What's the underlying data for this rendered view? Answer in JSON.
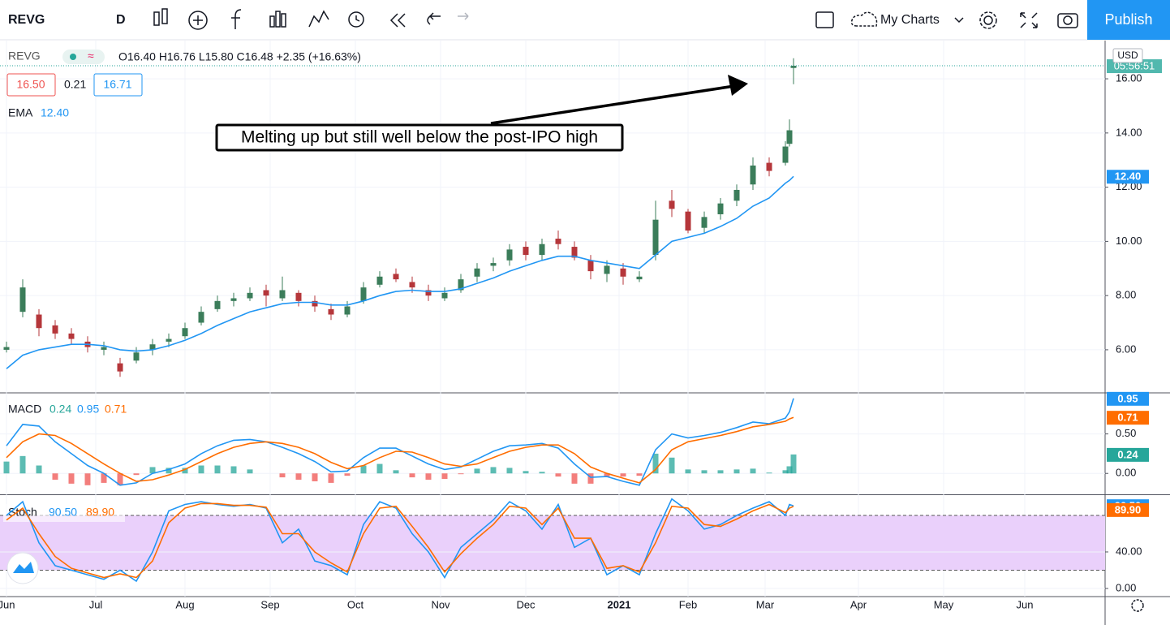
{
  "toolbar": {
    "symbol": "REVG",
    "interval": "D",
    "layout": "My Charts",
    "publish": "Publish"
  },
  "legend": {
    "symbol": "REVG",
    "ohlc": "O16.40 H16.76 L15.80 C16.48 +2.35 (+16.63%)",
    "bid": "16.50",
    "spread": "0.21",
    "ask": "16.71"
  },
  "chart_data": [
    {
      "type": "candlestick",
      "currency": "USD",
      "countdown": "05:56:51",
      "countdown_color": "#26a69a",
      "annotation": "Melting up but still well below the post-IPO high",
      "up_color": "#3b7d5a",
      "down_color": "#b5363a",
      "grid": true,
      "x": [
        0,
        4,
        8,
        12,
        16,
        20,
        24,
        28,
        32,
        36,
        40,
        44,
        48,
        52,
        56,
        60,
        64,
        68,
        72,
        76,
        80,
        84,
        88,
        92,
        96,
        100,
        104,
        108,
        112,
        116,
        120,
        124,
        128,
        132,
        136,
        140,
        144,
        148,
        152,
        156,
        160,
        164,
        168,
        172,
        176,
        180,
        184,
        188,
        192,
        193,
        194
      ],
      "open": [
        6.0,
        7.4,
        7.3,
        6.9,
        6.6,
        6.3,
        6.0,
        5.5,
        5.6,
        6.0,
        6.3,
        6.5,
        7.0,
        7.5,
        7.8,
        7.9,
        8.2,
        7.9,
        8.1,
        7.8,
        7.5,
        7.3,
        7.8,
        8.4,
        8.8,
        8.5,
        8.2,
        7.9,
        8.2,
        8.7,
        9.1,
        9.3,
        9.8,
        9.5,
        10.1,
        9.8,
        9.3,
        8.8,
        9.0,
        8.6,
        9.5,
        11.5,
        11.1,
        10.5,
        11.0,
        11.5,
        12.1,
        12.9,
        12.9,
        13.6,
        16.4
      ],
      "high": [
        6.3,
        8.6,
        7.5,
        7.1,
        6.8,
        6.5,
        6.3,
        5.7,
        6.1,
        6.4,
        6.6,
        7.0,
        7.6,
        8.0,
        8.1,
        8.3,
        8.4,
        8.7,
        8.2,
        8.0,
        7.7,
        7.8,
        8.5,
        8.9,
        9.0,
        8.7,
        8.4,
        8.3,
        8.8,
        9.2,
        9.4,
        9.9,
        10.0,
        10.1,
        10.4,
        10.0,
        9.5,
        9.3,
        9.2,
        8.9,
        11.5,
        11.9,
        11.2,
        11.1,
        11.6,
        12.1,
        13.1,
        13.1,
        13.7,
        14.5,
        16.76
      ],
      "low": [
        5.9,
        7.2,
        6.5,
        6.4,
        6.2,
        5.9,
        5.8,
        5.0,
        5.5,
        5.8,
        6.1,
        6.4,
        6.9,
        7.4,
        7.6,
        7.8,
        7.6,
        7.8,
        7.6,
        7.4,
        7.1,
        7.2,
        7.7,
        8.3,
        8.5,
        8.1,
        7.8,
        7.8,
        8.1,
        8.5,
        8.9,
        9.1,
        9.3,
        9.3,
        9.7,
        9.3,
        8.6,
        8.5,
        8.4,
        8.5,
        9.3,
        10.9,
        10.3,
        10.3,
        10.8,
        11.3,
        11.9,
        12.4,
        12.8,
        13.5,
        15.8
      ],
      "close": [
        6.1,
        8.3,
        6.8,
        6.6,
        6.4,
        6.1,
        6.1,
        5.2,
        5.9,
        6.2,
        6.4,
        6.8,
        7.4,
        7.8,
        7.9,
        8.1,
        8.0,
        8.2,
        7.8,
        7.6,
        7.3,
        7.6,
        8.3,
        8.7,
        8.6,
        8.3,
        8.0,
        8.1,
        8.6,
        9.0,
        9.2,
        9.7,
        9.5,
        9.9,
        9.9,
        9.4,
        8.9,
        9.1,
        8.7,
        8.7,
        10.8,
        11.2,
        10.4,
        10.9,
        11.4,
        11.9,
        12.8,
        12.6,
        13.5,
        14.1,
        16.48
      ],
      "series": [
        {
          "name": "EMA",
          "color": "#2196f3",
          "last_label": "12.40",
          "values": [
            5.3,
            5.8,
            6.0,
            6.1,
            6.2,
            6.2,
            6.15,
            6.0,
            5.95,
            6.0,
            6.15,
            6.35,
            6.6,
            6.9,
            7.15,
            7.4,
            7.55,
            7.7,
            7.75,
            7.75,
            7.65,
            7.65,
            7.8,
            8.0,
            8.15,
            8.2,
            8.15,
            8.15,
            8.25,
            8.45,
            8.65,
            8.9,
            9.1,
            9.3,
            9.45,
            9.45,
            9.3,
            9.2,
            9.1,
            9.0,
            9.5,
            10.0,
            10.15,
            10.3,
            10.55,
            10.85,
            11.3,
            11.6,
            12.15,
            12.25,
            12.4
          ]
        }
      ],
      "xlim": [
        -1.6,
        270.8
      ],
      "xticks": [
        {
          "value": 0,
          "label": "Jun"
        },
        {
          "value": 22,
          "label": "Jul"
        },
        {
          "value": 44,
          "label": "Aug"
        },
        {
          "value": 65,
          "label": "Sep"
        },
        {
          "value": 86,
          "label": "Oct"
        },
        {
          "value": 107,
          "label": "Nov"
        },
        {
          "value": 128,
          "label": "Dec"
        },
        {
          "value": 151,
          "label": "2021"
        },
        {
          "value": 168,
          "label": "Feb"
        },
        {
          "value": 187,
          "label": "Mar"
        },
        {
          "value": 210,
          "label": "Apr"
        },
        {
          "value": 231,
          "label": "May"
        },
        {
          "value": 251,
          "label": "Jun"
        }
      ],
      "ylim": [
        4.44,
        17.41
      ],
      "yticks": [
        {
          "value": 6,
          "label": "6.00"
        },
        {
          "value": 8,
          "label": "8.00"
        },
        {
          "value": 10,
          "label": "10.00"
        },
        {
          "value": 12,
          "label": "12.00"
        },
        {
          "value": 14,
          "label": "14.00"
        },
        {
          "value": 16,
          "label": "16.00"
        }
      ]
    },
    {
      "type": "macd",
      "title": "MACD",
      "grid": true,
      "ylim": [
        -0.265,
        1.01
      ],
      "yticks": [
        {
          "value": 0,
          "label": "0.00"
        },
        {
          "value": 0.5,
          "label": "0.50"
        }
      ],
      "series": [
        {
          "kind": "histogram",
          "color": "#26a69a",
          "negative_color": "#ef5350",
          "last_label": "0.24",
          "values": [
            0.15,
            0.22,
            0.1,
            -0.08,
            -0.13,
            -0.15,
            -0.12,
            -0.15,
            -0.02,
            0.08,
            0.07,
            0.07,
            0.1,
            0.1,
            0.09,
            0.05,
            0.0,
            -0.05,
            -0.08,
            -0.1,
            -0.12,
            -0.03,
            0.1,
            0.12,
            0.04,
            -0.05,
            -0.08,
            -0.07,
            -0.01,
            0.06,
            0.08,
            0.07,
            0.03,
            0.02,
            -0.04,
            -0.13,
            -0.13,
            -0.04,
            -0.04,
            -0.03,
            0.25,
            0.2,
            0.05,
            0.04,
            0.04,
            0.05,
            0.06,
            0.01,
            0.04,
            0.09,
            0.24
          ]
        },
        {
          "kind": "line",
          "color": "#2196f3",
          "last_label": "0.95",
          "values": [
            0.35,
            0.62,
            0.6,
            0.4,
            0.25,
            0.1,
            0.0,
            -0.15,
            -0.12,
            0.0,
            0.05,
            0.12,
            0.25,
            0.35,
            0.42,
            0.43,
            0.4,
            0.33,
            0.25,
            0.15,
            0.02,
            0.03,
            0.2,
            0.32,
            0.32,
            0.22,
            0.12,
            0.05,
            0.08,
            0.18,
            0.28,
            0.35,
            0.36,
            0.38,
            0.32,
            0.12,
            -0.05,
            -0.04,
            -0.1,
            -0.15,
            0.3,
            0.5,
            0.45,
            0.48,
            0.52,
            0.58,
            0.65,
            0.63,
            0.7,
            0.78,
            0.95
          ]
        },
        {
          "kind": "line",
          "color": "#ff6d00",
          "last_label": "0.71",
          "values": [
            0.2,
            0.4,
            0.5,
            0.48,
            0.38,
            0.25,
            0.12,
            0.0,
            -0.1,
            -0.08,
            -0.02,
            0.05,
            0.15,
            0.25,
            0.33,
            0.38,
            0.4,
            0.38,
            0.33,
            0.25,
            0.14,
            0.06,
            0.1,
            0.2,
            0.28,
            0.27,
            0.2,
            0.12,
            0.09,
            0.12,
            0.2,
            0.28,
            0.33,
            0.36,
            0.36,
            0.25,
            0.08,
            0.0,
            -0.06,
            -0.12,
            0.05,
            0.3,
            0.4,
            0.44,
            0.48,
            0.53,
            0.59,
            0.62,
            0.66,
            0.69,
            0.71
          ]
        }
      ]
    },
    {
      "type": "stoch",
      "title": "Stoch",
      "grid": true,
      "ylim": [
        -8.9,
        102.2
      ],
      "yticks": [
        {
          "value": 0,
          "label": "0.00"
        },
        {
          "value": 40,
          "label": "40.00"
        }
      ],
      "bands": [
        20,
        80
      ],
      "band_color": "#ead0fb",
      "series": [
        {
          "kind": "line",
          "color": "#2196f3",
          "last_label": "90.50",
          "values": [
            80,
            95,
            50,
            25,
            20,
            15,
            10,
            20,
            8,
            40,
            85,
            92,
            95,
            92,
            90,
            92,
            88,
            50,
            65,
            30,
            25,
            15,
            70,
            95,
            88,
            60,
            40,
            12,
            45,
            60,
            75,
            95,
            85,
            65,
            92,
            45,
            55,
            15,
            25,
            15,
            60,
            98,
            85,
            65,
            70,
            80,
            88,
            95,
            80,
            92,
            90.5
          ]
        },
        {
          "kind": "line",
          "color": "#ff6d00",
          "last_label": "89.90",
          "values": [
            75,
            88,
            60,
            35,
            22,
            17,
            12,
            16,
            12,
            30,
            72,
            88,
            93,
            93,
            91,
            91,
            89,
            60,
            60,
            40,
            28,
            18,
            60,
            88,
            90,
            68,
            45,
            18,
            38,
            55,
            70,
            90,
            88,
            70,
            88,
            55,
            55,
            22,
            25,
            18,
            50,
            90,
            88,
            70,
            68,
            76,
            85,
            92,
            83,
            88,
            89.9
          ]
        }
      ]
    }
  ]
}
